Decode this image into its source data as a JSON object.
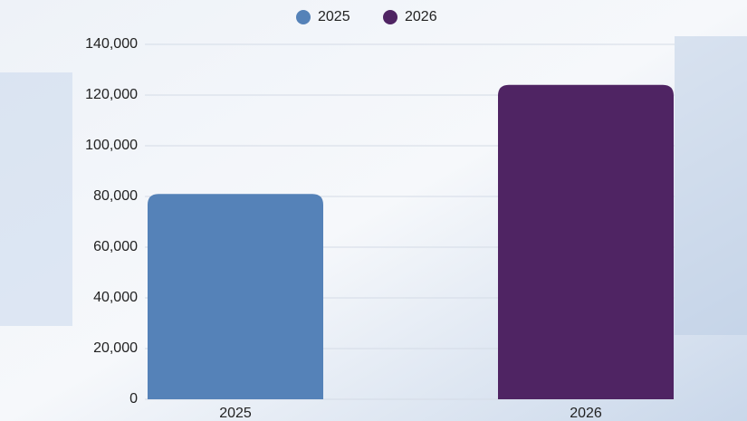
{
  "chart_data": {
    "type": "bar",
    "categories": [
      "2025",
      "2026"
    ],
    "series": [
      {
        "name": "2025",
        "color": "#5582b8",
        "values": [
          81000,
          null
        ]
      },
      {
        "name": "2026",
        "color": "#4f2463",
        "values": [
          null,
          124000
        ]
      }
    ],
    "ylim": [
      0,
      140000
    ],
    "yticks": [
      0,
      {
        "value": 20000,
        "label": "20,000"
      },
      {
        "value": 40000,
        "label": "40,000"
      },
      {
        "value": 60000,
        "label": "60,000"
      },
      {
        "value": 80000,
        "label": "80,000"
      },
      {
        "value": 100000,
        "label": "100,000"
      },
      {
        "value": 120000,
        "label": "120,000"
      },
      {
        "value": 140000,
        "label": "140,000"
      }
    ],
    "grid": true,
    "legend": "top"
  }
}
